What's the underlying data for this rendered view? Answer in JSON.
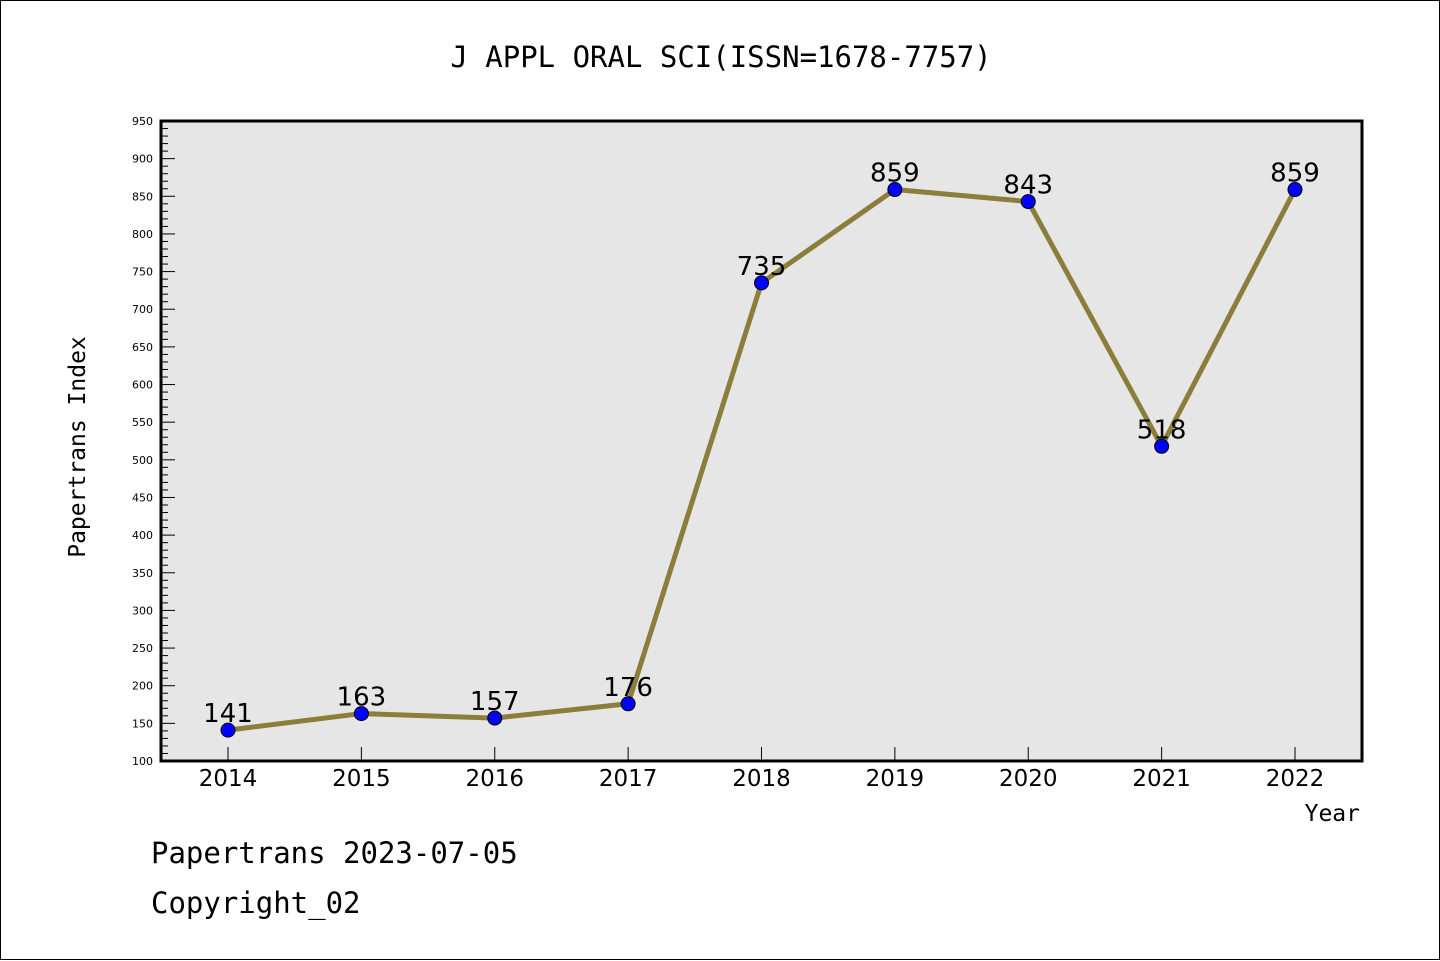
{
  "chart_data": {
    "type": "line",
    "title": "J APPL ORAL SCI(ISSN=1678-7757)",
    "xlabel": "Year",
    "ylabel": "Papertrans Index",
    "categories": [
      "2014",
      "2015",
      "2016",
      "2017",
      "2018",
      "2019",
      "2020",
      "2021",
      "2022"
    ],
    "values": [
      141,
      163,
      157,
      176,
      735,
      859,
      843,
      518,
      859
    ],
    "data_labels": [
      "141",
      "163",
      "157",
      "176",
      "735",
      "859",
      "843",
      "518",
      "859"
    ],
    "ylim": [
      100,
      950
    ],
    "yticks": [
      100,
      150,
      200,
      250,
      300,
      350,
      400,
      450,
      500,
      550,
      600,
      650,
      700,
      750,
      800,
      850,
      900,
      950
    ],
    "grid": false,
    "legend": "none",
    "colors": {
      "line": "#8b7d3a",
      "marker": "#0000ff",
      "plot_background": "#e6e6e6"
    }
  },
  "footer": {
    "line1": "Papertrans 2023-07-05",
    "line2": "Copyright_02"
  }
}
